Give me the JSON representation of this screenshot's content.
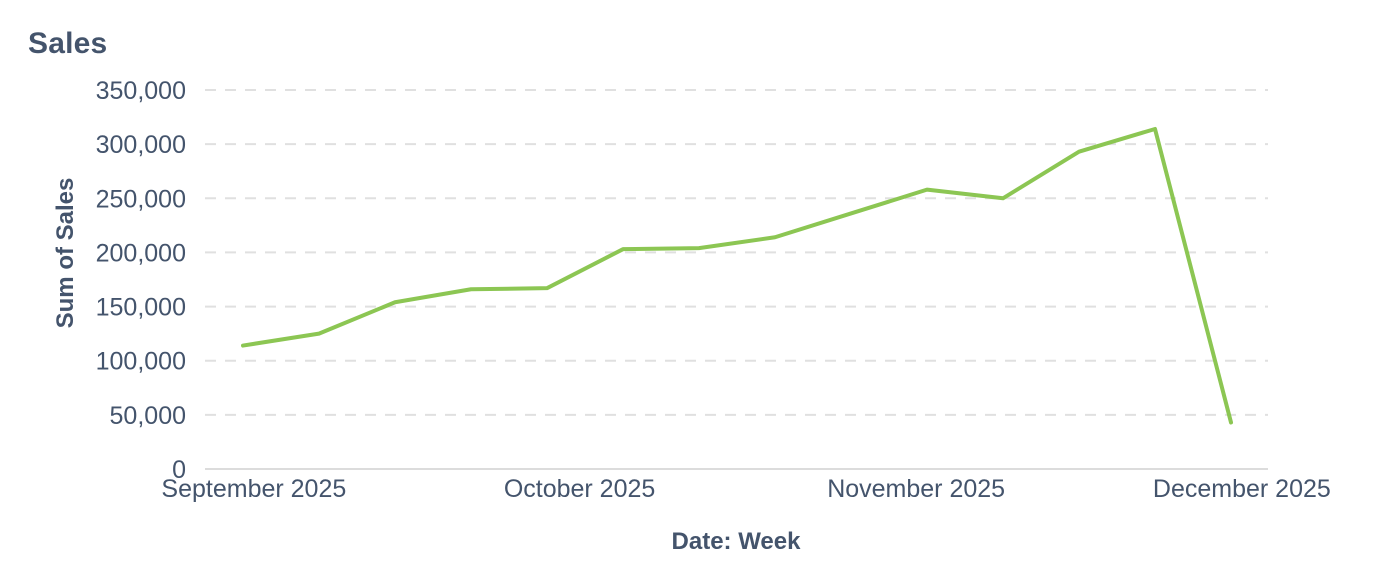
{
  "chart_data": {
    "type": "line",
    "title": "Sales",
    "xlabel": "Date: Week",
    "ylabel": "Sum of Sales",
    "series": [
      {
        "name": "Sum of Sales",
        "x_week_start": [
          "2025-08-31",
          "2025-09-07",
          "2025-09-14",
          "2025-09-21",
          "2025-09-28",
          "2025-10-05",
          "2025-10-12",
          "2025-10-19",
          "2025-10-26",
          "2025-11-02",
          "2025-11-09",
          "2025-11-16",
          "2025-11-23",
          "2025-11-30"
        ],
        "values": [
          114000,
          125000,
          154000,
          166000,
          167000,
          203000,
          204000,
          214000,
          236000,
          258000,
          250000,
          293000,
          314000,
          43000
        ]
      }
    ],
    "ylim": [
      0,
      350000
    ],
    "y_ticks": [
      {
        "value": 0,
        "label": "0"
      },
      {
        "value": 50000,
        "label": "50,000"
      },
      {
        "value": 100000,
        "label": "100,000"
      },
      {
        "value": 150000,
        "label": "150,000"
      },
      {
        "value": 200000,
        "label": "200,000"
      },
      {
        "value": 250000,
        "label": "250,000"
      },
      {
        "value": 300000,
        "label": "300,000"
      },
      {
        "value": 350000,
        "label": "350,000"
      }
    ],
    "x_ticks": [
      {
        "label": "September 2025",
        "day_offset_from_first_point": 1
      },
      {
        "label": "October 2025",
        "day_offset_from_first_point": 31
      },
      {
        "label": "November 2025",
        "day_offset_from_first_point": 62
      },
      {
        "label": "December 2025",
        "day_offset_from_first_point": 92
      }
    ],
    "grid": "horizontal-dashed",
    "legend": "none",
    "colors": {
      "line": "#8CC653",
      "text": "#44546C",
      "gridline": "#E0E0E0",
      "axis_line": "#DCDCDC"
    }
  }
}
